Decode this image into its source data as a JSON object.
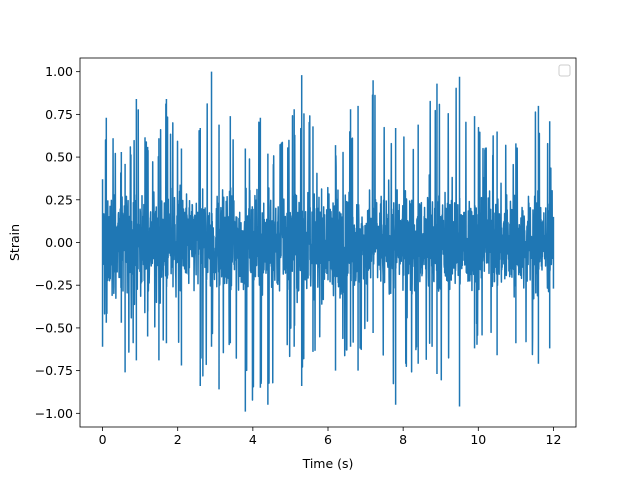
{
  "chart_data": {
    "type": "line",
    "title": "",
    "xlabel": "Time (s)",
    "ylabel": "Strain",
    "xlim": [
      -0.6,
      12.6
    ],
    "ylim": [
      -1.08,
      1.08
    ],
    "x_ticks": [
      0,
      2,
      4,
      6,
      8,
      10,
      12
    ],
    "x_tick_labels": [
      "0",
      "2",
      "4",
      "6",
      "8",
      "10",
      "12"
    ],
    "y_ticks": [
      -1.0,
      -0.75,
      -0.5,
      -0.25,
      0.0,
      0.25,
      0.5,
      0.75,
      1.0
    ],
    "y_tick_labels": [
      "−1.00",
      "−0.75",
      "−0.50",
      "−0.25",
      "0.00",
      "0.25",
      "0.50",
      "0.75",
      "1.00"
    ],
    "grid": false,
    "legend": {
      "placement": "top-right",
      "entries": []
    },
    "series": [
      {
        "color": "#1f77b4",
        "x_start": 0,
        "x_end": 12,
        "y_range": [
          -0.99,
          1.0
        ],
        "envelope": [
          {
            "x": 0.0,
            "min": -0.61,
            "max": 0.37
          },
          {
            "x": 0.1,
            "min": -0.47,
            "max": 0.73
          },
          {
            "x": 0.5,
            "min": -0.47,
            "max": 0.53
          },
          {
            "x": 0.6,
            "min": -0.76,
            "max": 0.46
          },
          {
            "x": 0.9,
            "min": -0.69,
            "max": 0.84
          },
          {
            "x": 1.2,
            "min": -0.55,
            "max": 0.56
          },
          {
            "x": 1.5,
            "min": -0.69,
            "max": 0.61
          },
          {
            "x": 1.7,
            "min": -0.59,
            "max": 0.84
          },
          {
            "x": 2.1,
            "min": -0.72,
            "max": 0.55
          },
          {
            "x": 2.6,
            "min": -0.84,
            "max": 0.67
          },
          {
            "x": 2.9,
            "min": -0.61,
            "max": 1.0
          },
          {
            "x": 3.1,
            "min": -0.86,
            "max": 0.69
          },
          {
            "x": 3.4,
            "min": -0.59,
            "max": 0.74
          },
          {
            "x": 3.8,
            "min": -0.99,
            "max": 0.55
          },
          {
            "x": 4.2,
            "min": -0.85,
            "max": 0.73
          },
          {
            "x": 4.4,
            "min": -0.95,
            "max": 0.52
          },
          {
            "x": 5.1,
            "min": -0.61,
            "max": 0.78
          },
          {
            "x": 5.3,
            "min": -0.84,
            "max": 0.72
          },
          {
            "x": 5.3,
            "min": -0.82,
            "max": 0.98
          },
          {
            "x": 5.6,
            "min": -0.64,
            "max": 0.68
          },
          {
            "x": 6.2,
            "min": -0.75,
            "max": 0.57
          },
          {
            "x": 6.6,
            "min": -0.61,
            "max": 0.78
          },
          {
            "x": 6.8,
            "min": -0.75,
            "max": 0.8
          },
          {
            "x": 7.2,
            "min": -0.53,
            "max": 0.95
          },
          {
            "x": 7.8,
            "min": -0.95,
            "max": 0.67
          },
          {
            "x": 8.4,
            "min": -0.71,
            "max": 0.69
          },
          {
            "x": 8.9,
            "min": -0.77,
            "max": 0.93
          },
          {
            "x": 9.5,
            "min": -0.96,
            "max": 0.97
          },
          {
            "x": 9.9,
            "min": -0.62,
            "max": 0.74
          },
          {
            "x": 10.5,
            "min": -0.66,
            "max": 0.65
          },
          {
            "x": 11.0,
            "min": -0.59,
            "max": 0.58
          },
          {
            "x": 11.6,
            "min": -0.71,
            "max": 0.8
          },
          {
            "x": 11.9,
            "min": -0.62,
            "max": 0.71
          },
          {
            "x": 12.0,
            "min": -0.27,
            "max": 0.15
          }
        ]
      }
    ]
  }
}
